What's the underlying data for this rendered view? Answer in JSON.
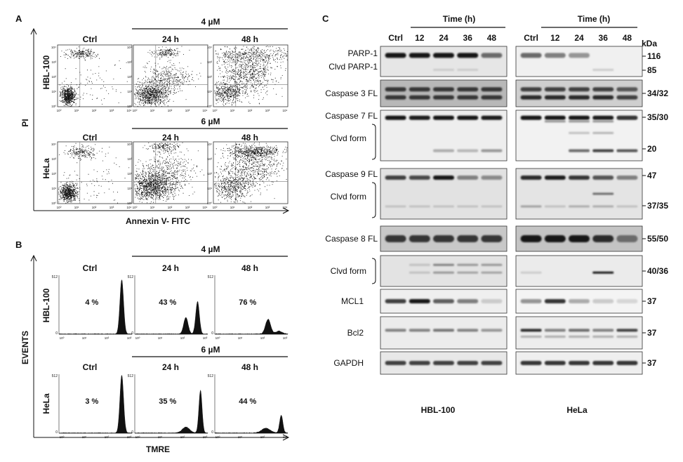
{
  "panels": {
    "A": {
      "letter": "A",
      "conc_top": "4 µM",
      "conc_bottom": "6 µM",
      "col_labels": [
        "Ctrl",
        "24 h",
        "48 h"
      ],
      "row_labels": [
        "HBL-100",
        "HeLa"
      ],
      "ylabel": "PI",
      "xlabel": "Annexin V- FITC",
      "tick_labels": [
        "10⁰",
        "10¹",
        "10²",
        "10³",
        "10⁴"
      ]
    },
    "B": {
      "letter": "B",
      "conc_top": "4 µM",
      "conc_bottom": "6 µM",
      "col_labels": [
        "Ctrl",
        "24 h",
        "48 h"
      ],
      "row_labels": [
        "HBL-100",
        "HeLa"
      ],
      "ylabel": "EVENTS",
      "xlabel": "TMRE",
      "y_tick_top": "512",
      "y_tick_bottom": "0",
      "tick_labels": [
        "10⁰",
        "10¹",
        "10²",
        "10³"
      ],
      "percentages": [
        [
          "4 %",
          "43 %",
          "76 %"
        ],
        [
          "3 %",
          "35 %",
          "44 %"
        ]
      ]
    },
    "C": {
      "letter": "C",
      "time_header": "Time (h)",
      "lanes": [
        "Ctrl",
        "12",
        "24",
        "36",
        "48"
      ],
      "kda_header": "kDa",
      "blot_rows": [
        {
          "label": "PARP-1",
          "sublabel": "Clvd PARP-1",
          "kda": "116",
          "kda2": "85"
        },
        {
          "label": "Caspase 3 FL",
          "kda": "34/32"
        },
        {
          "label": "Caspase 7 FL",
          "sublabel": "Clvd form",
          "kda": "35/30",
          "kda2": "20"
        },
        {
          "label": "Caspase 9 FL",
          "sublabel": "Clvd form",
          "kda": "47",
          "kda2": "37/35"
        },
        {
          "label": "Caspase 8 FL",
          "kda": "55/50"
        },
        {
          "label": "Clvd form",
          "kda": "40/36"
        },
        {
          "label": "MCL1",
          "kda": "37"
        },
        {
          "label": "Bcl2",
          "kda": "37"
        },
        {
          "label": "GAPDH",
          "kda": "37"
        }
      ],
      "cell_lines": [
        "HBL-100",
        "HeLa"
      ]
    }
  }
}
